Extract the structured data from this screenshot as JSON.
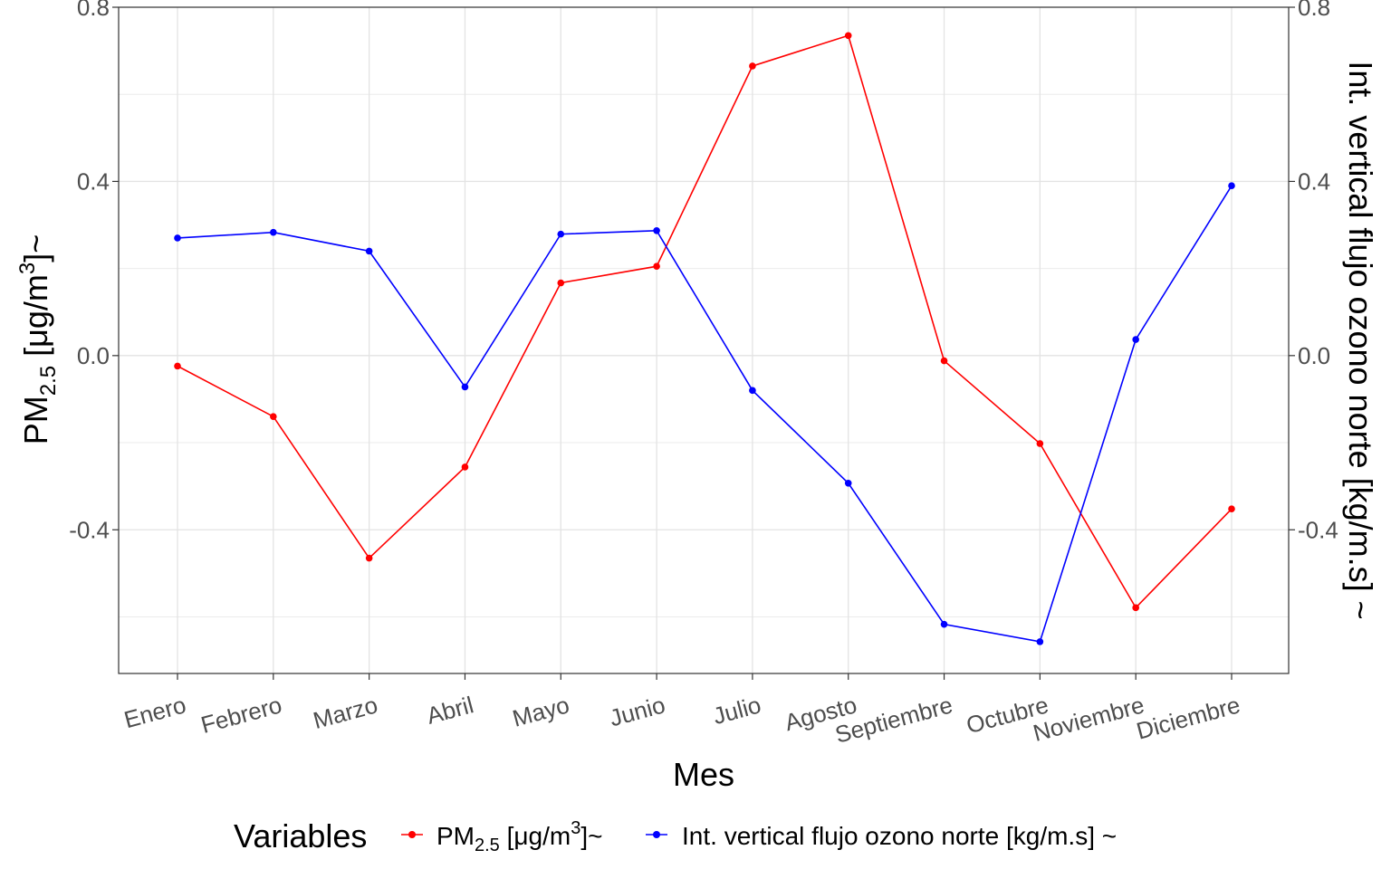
{
  "chart_data": {
    "type": "line",
    "x": {
      "title": "Mes",
      "categories": [
        "Enero",
        "Febrero",
        "Marzo",
        "Abril",
        "Mayo",
        "Junio",
        "Julio",
        "Agosto",
        "Septiembre",
        "Octubre",
        "Noviembre",
        "Diciembre"
      ]
    },
    "y_left": {
      "title_main": "PM",
      "title_sub": "2.5",
      "title_rest": " [μg/m",
      "title_sup": "3",
      "title_end": "]~",
      "ticks": [
        "0.8",
        "0.4",
        "0.0",
        "-0.4"
      ],
      "tick_values": [
        0.8,
        0.4,
        0.0,
        -0.4
      ],
      "ylim": [
        -0.73,
        0.8
      ]
    },
    "y_right": {
      "title": "Int. vertical flujo ozono norte [kg/m.s] ~",
      "ticks": [
        "0.8",
        "0.4",
        "0.0",
        "-0.4"
      ],
      "tick_values": [
        0.8,
        0.4,
        0.0,
        -0.4
      ],
      "ylim": [
        -0.73,
        0.8
      ]
    },
    "grid": true,
    "legend": {
      "placement": "bottom",
      "title": "Variables",
      "items": [
        {
          "main": "PM",
          "sub": "2.5",
          "rest": " [μg/m",
          "sup": "3",
          "end": "]~"
        },
        {
          "text": "Int. vertical flujo ozono norte [kg/m.s] ~"
        }
      ]
    },
    "series": [
      {
        "color": "#ff0000",
        "values": [
          -0.024,
          -0.14,
          -0.465,
          -0.256,
          0.167,
          0.205,
          0.665,
          0.735,
          -0.012,
          -0.202,
          -0.579,
          -0.352
        ]
      },
      {
        "color": "#0000ff",
        "values": [
          0.27,
          0.283,
          0.24,
          -0.072,
          0.279,
          0.287,
          -0.08,
          -0.293,
          -0.617,
          -0.657,
          0.037,
          0.39
        ]
      }
    ]
  }
}
